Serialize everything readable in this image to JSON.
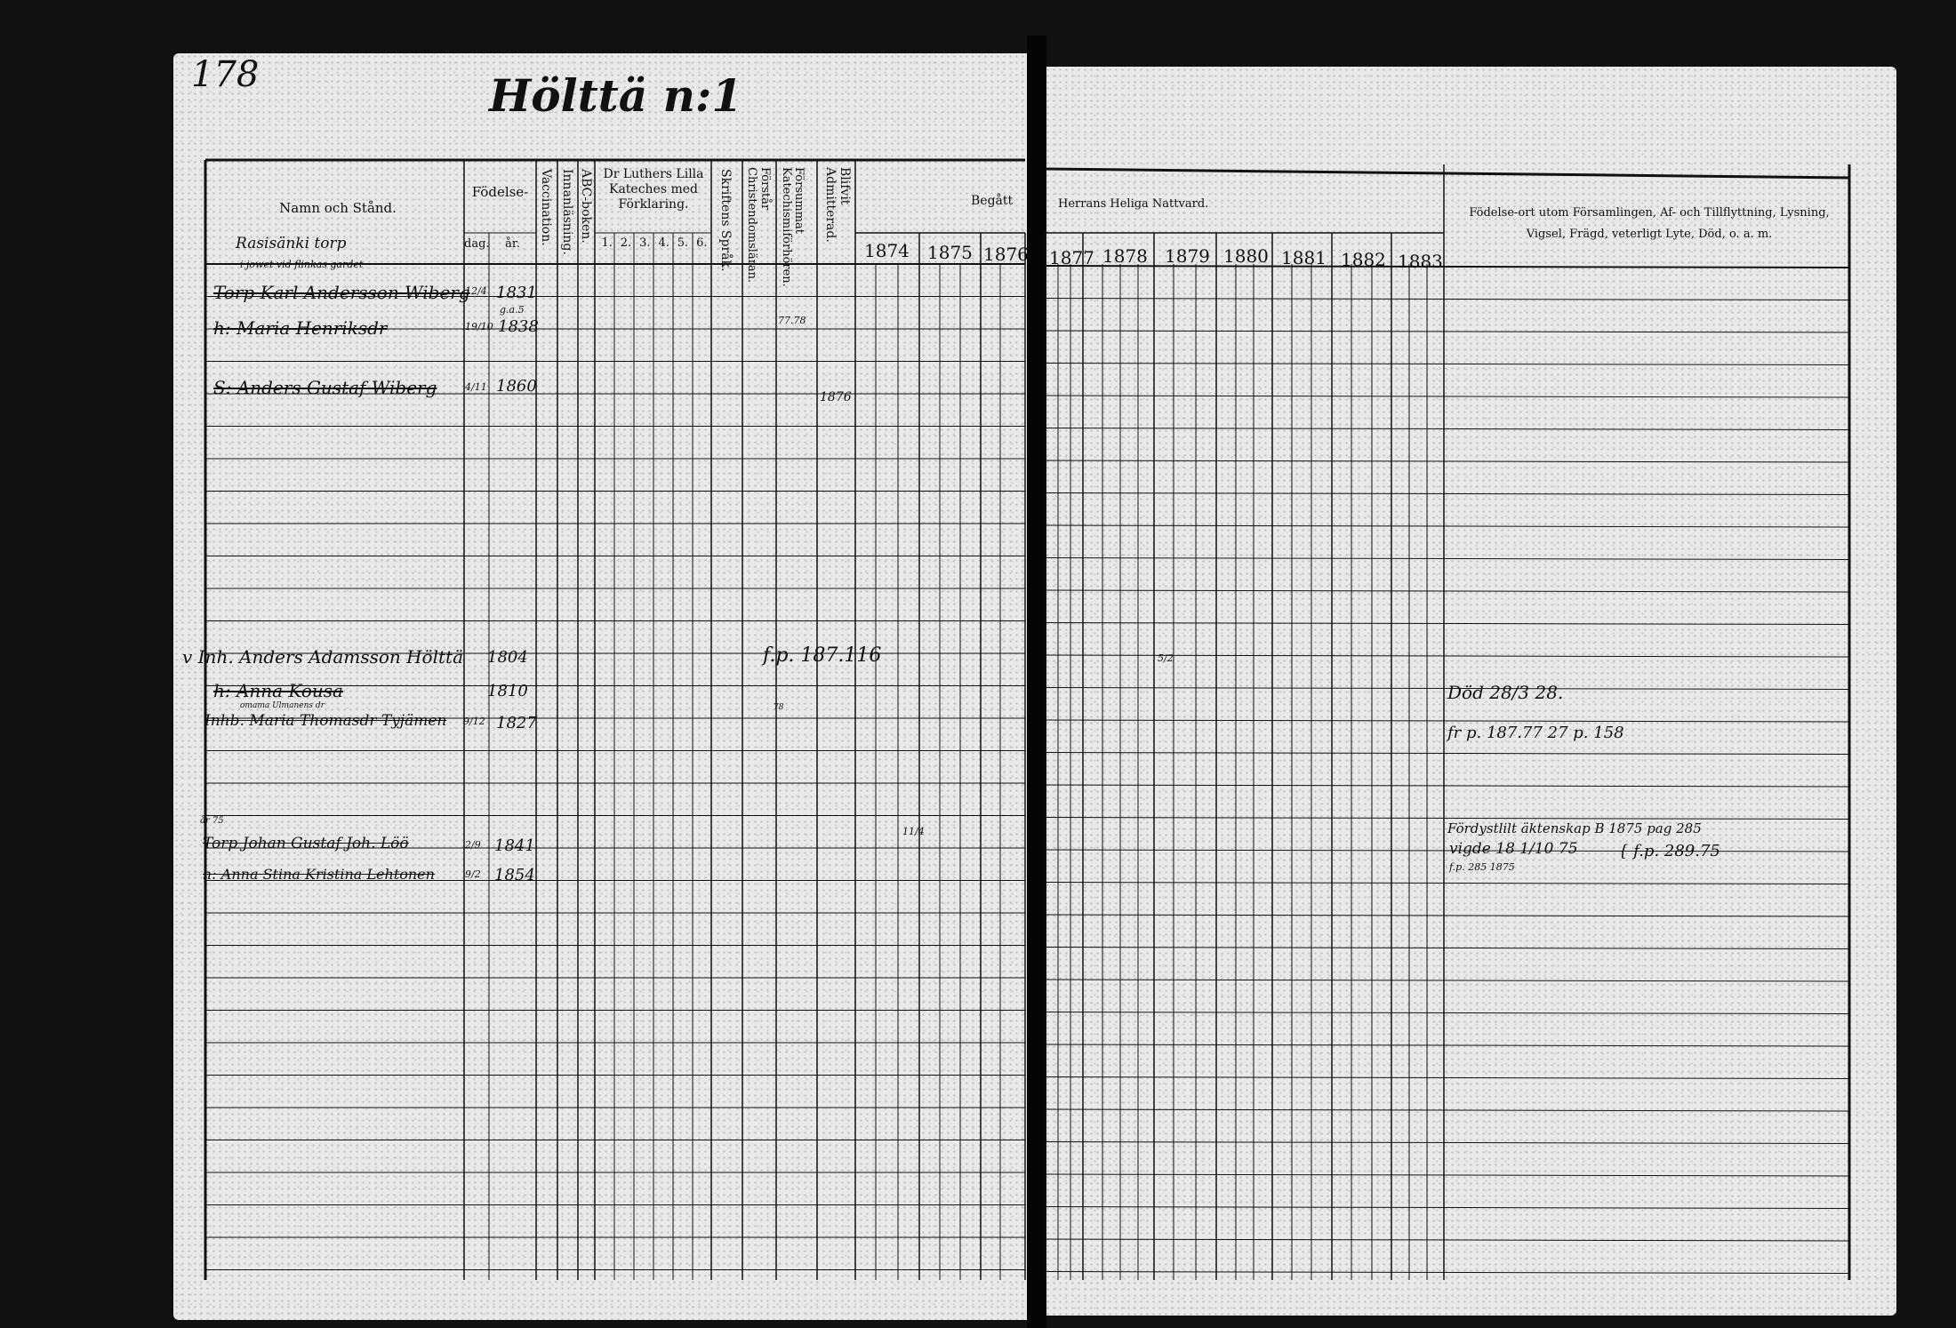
{
  "page_number": "178",
  "title": "Hölttä n:1",
  "header_left": {
    "name_col": "Namn och Stånd.",
    "birth": "Födelse-",
    "birth_day": "dag.",
    "birth_year": "år.",
    "vaccination": "Vaccination.",
    "reading": "Innanläsning.",
    "abc": "ABC-boken.",
    "luther": "Dr Luthers Lilla Kateches med Förklaring.",
    "luther_parts": [
      "1.",
      "2.",
      "3.",
      "4.",
      "5.",
      "6."
    ],
    "scripture": "Skriftens Språk.",
    "understands": "Förstår Christendomsläran.",
    "missed": "Försummat Katechismiförhören.",
    "admitted": "Blifvit Admitterad.",
    "begatt": "Begått",
    "place": "Rasisänki torp"
  },
  "header_right": {
    "communion": "Herrans Heliga Nattvard.",
    "remarks": "Födelse-ort utom Församlingen, Af- och Tillflyttning, Lysning, Vigsel, Frägd, veterligt Lyte, Död, o. a. m."
  },
  "years": [
    "1874",
    "1875",
    "1876",
    "1877",
    "1878",
    "1879",
    "1880",
    "1881",
    "1882",
    "1883"
  ],
  "entries": [
    {
      "note": "i jowet vid flinkas gardet",
      "name": "Torp Karl Andersson Wiberg",
      "day": "12/4",
      "year": "1831"
    },
    {
      "note": "g.a.5",
      "name": "h: Maria Henriksdr",
      "day": "19/10",
      "year": "1838",
      "missed": "77.78"
    },
    {
      "name": "S: Anders Gustaf Wiberg",
      "day": "4/11",
      "year": "1860",
      "admitted": "1876"
    },
    {
      "name": "v Inh. Anders Adamsson Hölttä",
      "year": "1804",
      "ref": "f.p. 187.116",
      "mark1879": "5/2"
    },
    {
      "name": "h: Anna Kousa",
      "year": "1810",
      "remark": "Död 28/3 28."
    },
    {
      "note": "omama Ulmanens dr",
      "name": "Inhb. Maria Thomasdr Tyjämen",
      "day": "9/12",
      "year": "1827",
      "missed": "78",
      "remark": "fr p. 187.77 27 p. 158"
    },
    {
      "note": "år 75",
      "name": "Torp Johan Gustaf Joh. Löö",
      "day": "2/9",
      "year": "1841",
      "mark1874": "11/4",
      "remark": "Fördystlilt äktenskap B 1875 pag 285"
    },
    {
      "name": "h: Anna Stina Kristina Lehtonen",
      "day": "9/2",
      "year": "1854",
      "remark": "vigde 18 1/10 75",
      "remark2": "f.p. 285 1875",
      "remark3": "{ f.p. 289.75"
    }
  ]
}
